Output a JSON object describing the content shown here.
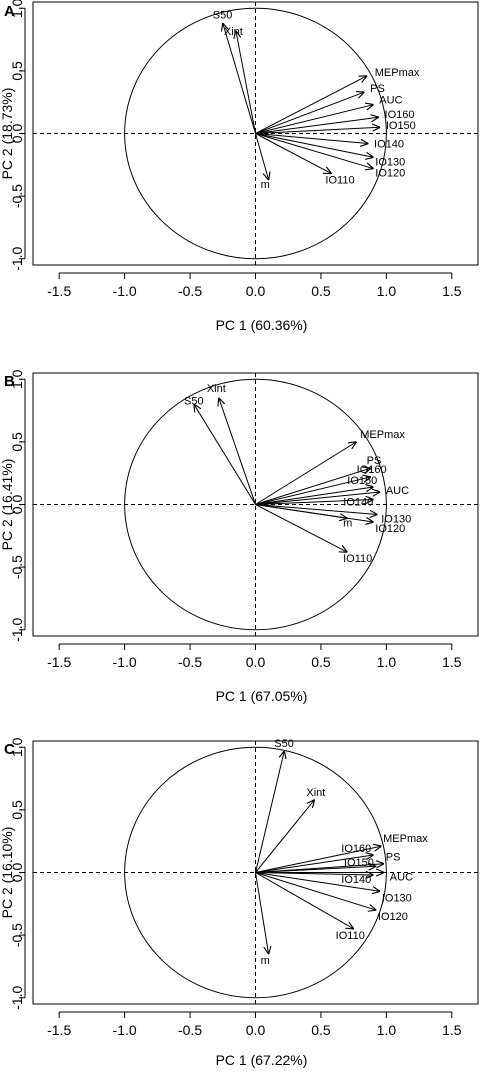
{
  "chart_data": [
    {
      "type": "scatter",
      "panel": "A",
      "xlabel": "PC 1 (60.36%)",
      "ylabel": "PC 2 (18.73%)",
      "xlim": [
        -1.7,
        1.7
      ],
      "ylim": [
        -1.05,
        1.05
      ],
      "xticks": [
        "-1.5",
        "-1.0",
        "-0.5",
        "0.0",
        "0.5",
        "1.0",
        "1.5"
      ],
      "yticks": [
        "-1.0",
        "-0.5",
        "0.0",
        "0.5",
        "1.0"
      ],
      "unit_circle": true,
      "reference_lines": [
        "x=0",
        "y=0"
      ],
      "vectors": [
        {
          "label": "S50",
          "x": -0.25,
          "y": 0.88
        },
        {
          "label": "Xint",
          "x": -0.15,
          "y": 0.82
        },
        {
          "label": "MEPmax",
          "x": 0.85,
          "y": 0.46
        },
        {
          "label": "PS",
          "x": 0.83,
          "y": 0.33
        },
        {
          "label": "AUC",
          "x": 0.9,
          "y": 0.23
        },
        {
          "label": "IO160",
          "x": 0.94,
          "y": 0.13
        },
        {
          "label": "IO150",
          "x": 0.95,
          "y": 0.05
        },
        {
          "label": "IO140",
          "x": 0.86,
          "y": -0.08
        },
        {
          "label": "IO130",
          "x": 0.9,
          "y": -0.19
        },
        {
          "label": "IO120",
          "x": 0.9,
          "y": -0.28
        },
        {
          "label": "IO110",
          "x": 0.58,
          "y": -0.32
        },
        {
          "label": "m",
          "x": 0.1,
          "y": -0.37
        }
      ]
    },
    {
      "type": "scatter",
      "panel": "B",
      "xlabel": "PC 1 (67.05%)",
      "ylabel": "PC 2 (16.41%)",
      "xlim": [
        -1.7,
        1.7
      ],
      "ylim": [
        -1.05,
        1.05
      ],
      "xticks": [
        "-1.5",
        "-1.0",
        "-0.5",
        "0.0",
        "0.5",
        "1.0",
        "1.5"
      ],
      "yticks": [
        "-1.0",
        "-0.5",
        "0.0",
        "0.5",
        "1.0"
      ],
      "unit_circle": true,
      "reference_lines": [
        "x=0",
        "y=0"
      ],
      "vectors": [
        {
          "label": "S50",
          "x": -0.47,
          "y": 0.8
        },
        {
          "label": "Xint",
          "x": -0.28,
          "y": 0.85
        },
        {
          "label": "MEPmax",
          "x": 0.77,
          "y": 0.5
        },
        {
          "label": "PS",
          "x": 0.88,
          "y": 0.29
        },
        {
          "label": "IO160",
          "x": 0.88,
          "y": 0.22
        },
        {
          "label": "IO150",
          "x": 0.9,
          "y": 0.14
        },
        {
          "label": "AUC",
          "x": 0.95,
          "y": 0.1
        },
        {
          "label": "IO140",
          "x": 0.9,
          "y": 0.04
        },
        {
          "label": "IO130",
          "x": 0.93,
          "y": -0.08
        },
        {
          "label": "m",
          "x": 0.7,
          "y": -0.11
        },
        {
          "label": "IO120",
          "x": 0.9,
          "y": -0.14
        },
        {
          "label": "IO110",
          "x": 0.7,
          "y": -0.38
        }
      ]
    },
    {
      "type": "scatter",
      "panel": "C",
      "xlabel": "PC 1 (67.22%)",
      "ylabel": "PC 2 (16.10%)",
      "xlim": [
        -1.7,
        1.7
      ],
      "ylim": [
        -1.05,
        1.05
      ],
      "xticks": [
        "-1.5",
        "-1.0",
        "-0.5",
        "0.0",
        "0.5",
        "1.0",
        "1.5"
      ],
      "yticks": [
        "-1.0",
        "-0.5",
        "0.0",
        "0.5",
        "1.0"
      ],
      "unit_circle": true,
      "reference_lines": [
        "x=0",
        "y=0"
      ],
      "vectors": [
        {
          "label": "S50",
          "x": 0.22,
          "y": 0.97
        },
        {
          "label": "Xint",
          "x": 0.45,
          "y": 0.58
        },
        {
          "label": "MEPmax",
          "x": 0.96,
          "y": 0.21
        },
        {
          "label": "IO160",
          "x": 0.9,
          "y": 0.14
        },
        {
          "label": "IO150",
          "x": 0.92,
          "y": 0.05
        },
        {
          "label": "PS",
          "x": 0.98,
          "y": 0.07
        },
        {
          "label": "IO140",
          "x": 0.9,
          "y": -0.02
        },
        {
          "label": "AUC",
          "x": 0.98,
          "y": 0.0
        },
        {
          "label": "IO130",
          "x": 0.95,
          "y": -0.15
        },
        {
          "label": "IO120",
          "x": 0.92,
          "y": -0.3
        },
        {
          "label": "IO110",
          "x": 0.75,
          "y": -0.45
        },
        {
          "label": "m",
          "x": 0.1,
          "y": -0.65
        }
      ]
    }
  ]
}
